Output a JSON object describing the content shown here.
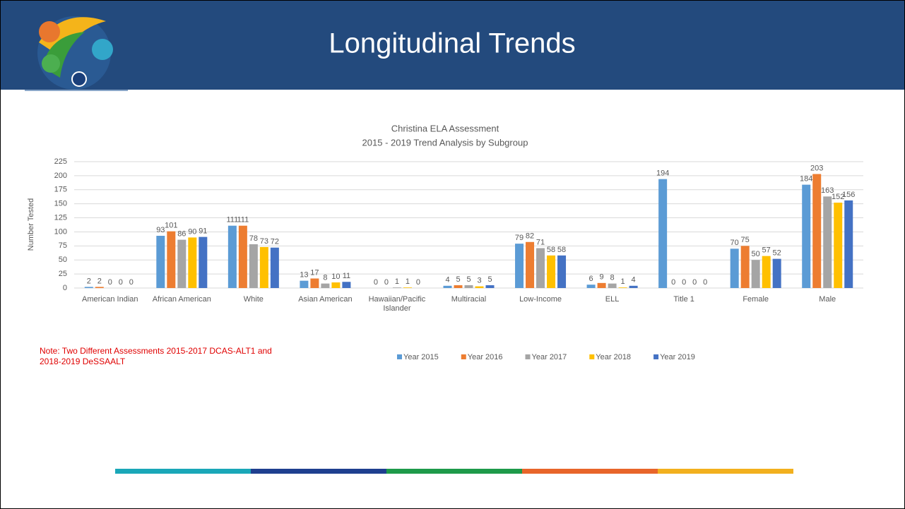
{
  "header": {
    "title": "Longitudinal Trends"
  },
  "chart_data": {
    "type": "bar",
    "title": "Christina ELA Assessment",
    "subtitle": "2015 - 2019 Trend Analysis by Subgroup",
    "y_label": "Number Tested",
    "note": "Note: Two Different Assessments 2015-2017  DCAS-ALT1 and 2018-2019 DeSSAALT",
    "categories": [
      "American Indian",
      "African American",
      "White",
      "Asian American",
      "Hawaiian/Pacific Islander",
      "Multiracial",
      "Low-Income",
      "ELL",
      "Title 1",
      "Female",
      "Male"
    ],
    "series": [
      {
        "name": "Year 2015",
        "color": "#5b9bd5",
        "values": [
          2,
          93,
          111,
          13,
          0,
          4,
          79,
          6,
          194,
          70,
          184
        ]
      },
      {
        "name": "Year 2016",
        "color": "#ed7d31",
        "values": [
          2,
          101,
          111,
          17,
          0,
          5,
          82,
          9,
          0,
          75,
          203
        ]
      },
      {
        "name": "Year 2017",
        "color": "#a5a5a5",
        "values": [
          0,
          86,
          78,
          8,
          1,
          5,
          71,
          8,
          0,
          50,
          163
        ]
      },
      {
        "name": "Year 2018",
        "color": "#ffc000",
        "values": [
          0,
          90,
          73,
          10,
          1,
          3,
          58,
          1,
          0,
          57,
          152
        ]
      },
      {
        "name": "Year 2019",
        "color": "#4472c4",
        "values": [
          0,
          91,
          72,
          11,
          0,
          5,
          58,
          4,
          0,
          52,
          156
        ]
      }
    ],
    "ylim": [
      0,
      225
    ],
    "yticks": [
      0,
      25,
      50,
      75,
      100,
      125,
      150,
      175,
      200,
      225
    ],
    "grid": true,
    "legend": "bottom"
  }
}
